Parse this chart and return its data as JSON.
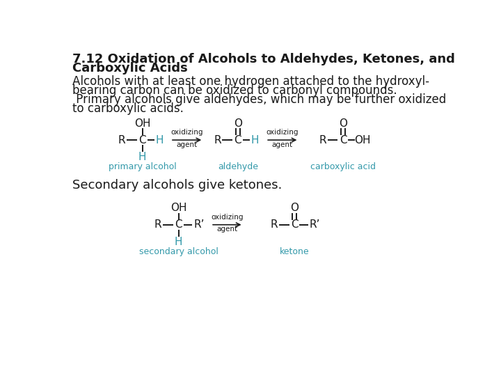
{
  "title_line1": "7.12 Oxidation of Alcohols to Aldehydes, Ketones, and",
  "title_line2": "Carboxylic Acids",
  "body_line1": "Alcohols with at least one hydrogen attached to the hydroxyl-",
  "body_line2": "bearing carbon can be oxidized to carbonyl compounds.",
  "body_line3": " Primary alcohols give aldehydes, which may be further oxidized",
  "body_line4": "to carboxylic acids.",
  "secondary_text": "Secondary alcohols give ketones.",
  "bg_color": "#ffffff",
  "text_color": "#1a1a1a",
  "cyan_color": "#3399aa",
  "title_fontsize": 13,
  "body_fontsize": 12,
  "secondary_fontsize": 13,
  "chem_fontsize": 11,
  "label_fontsize": 9
}
